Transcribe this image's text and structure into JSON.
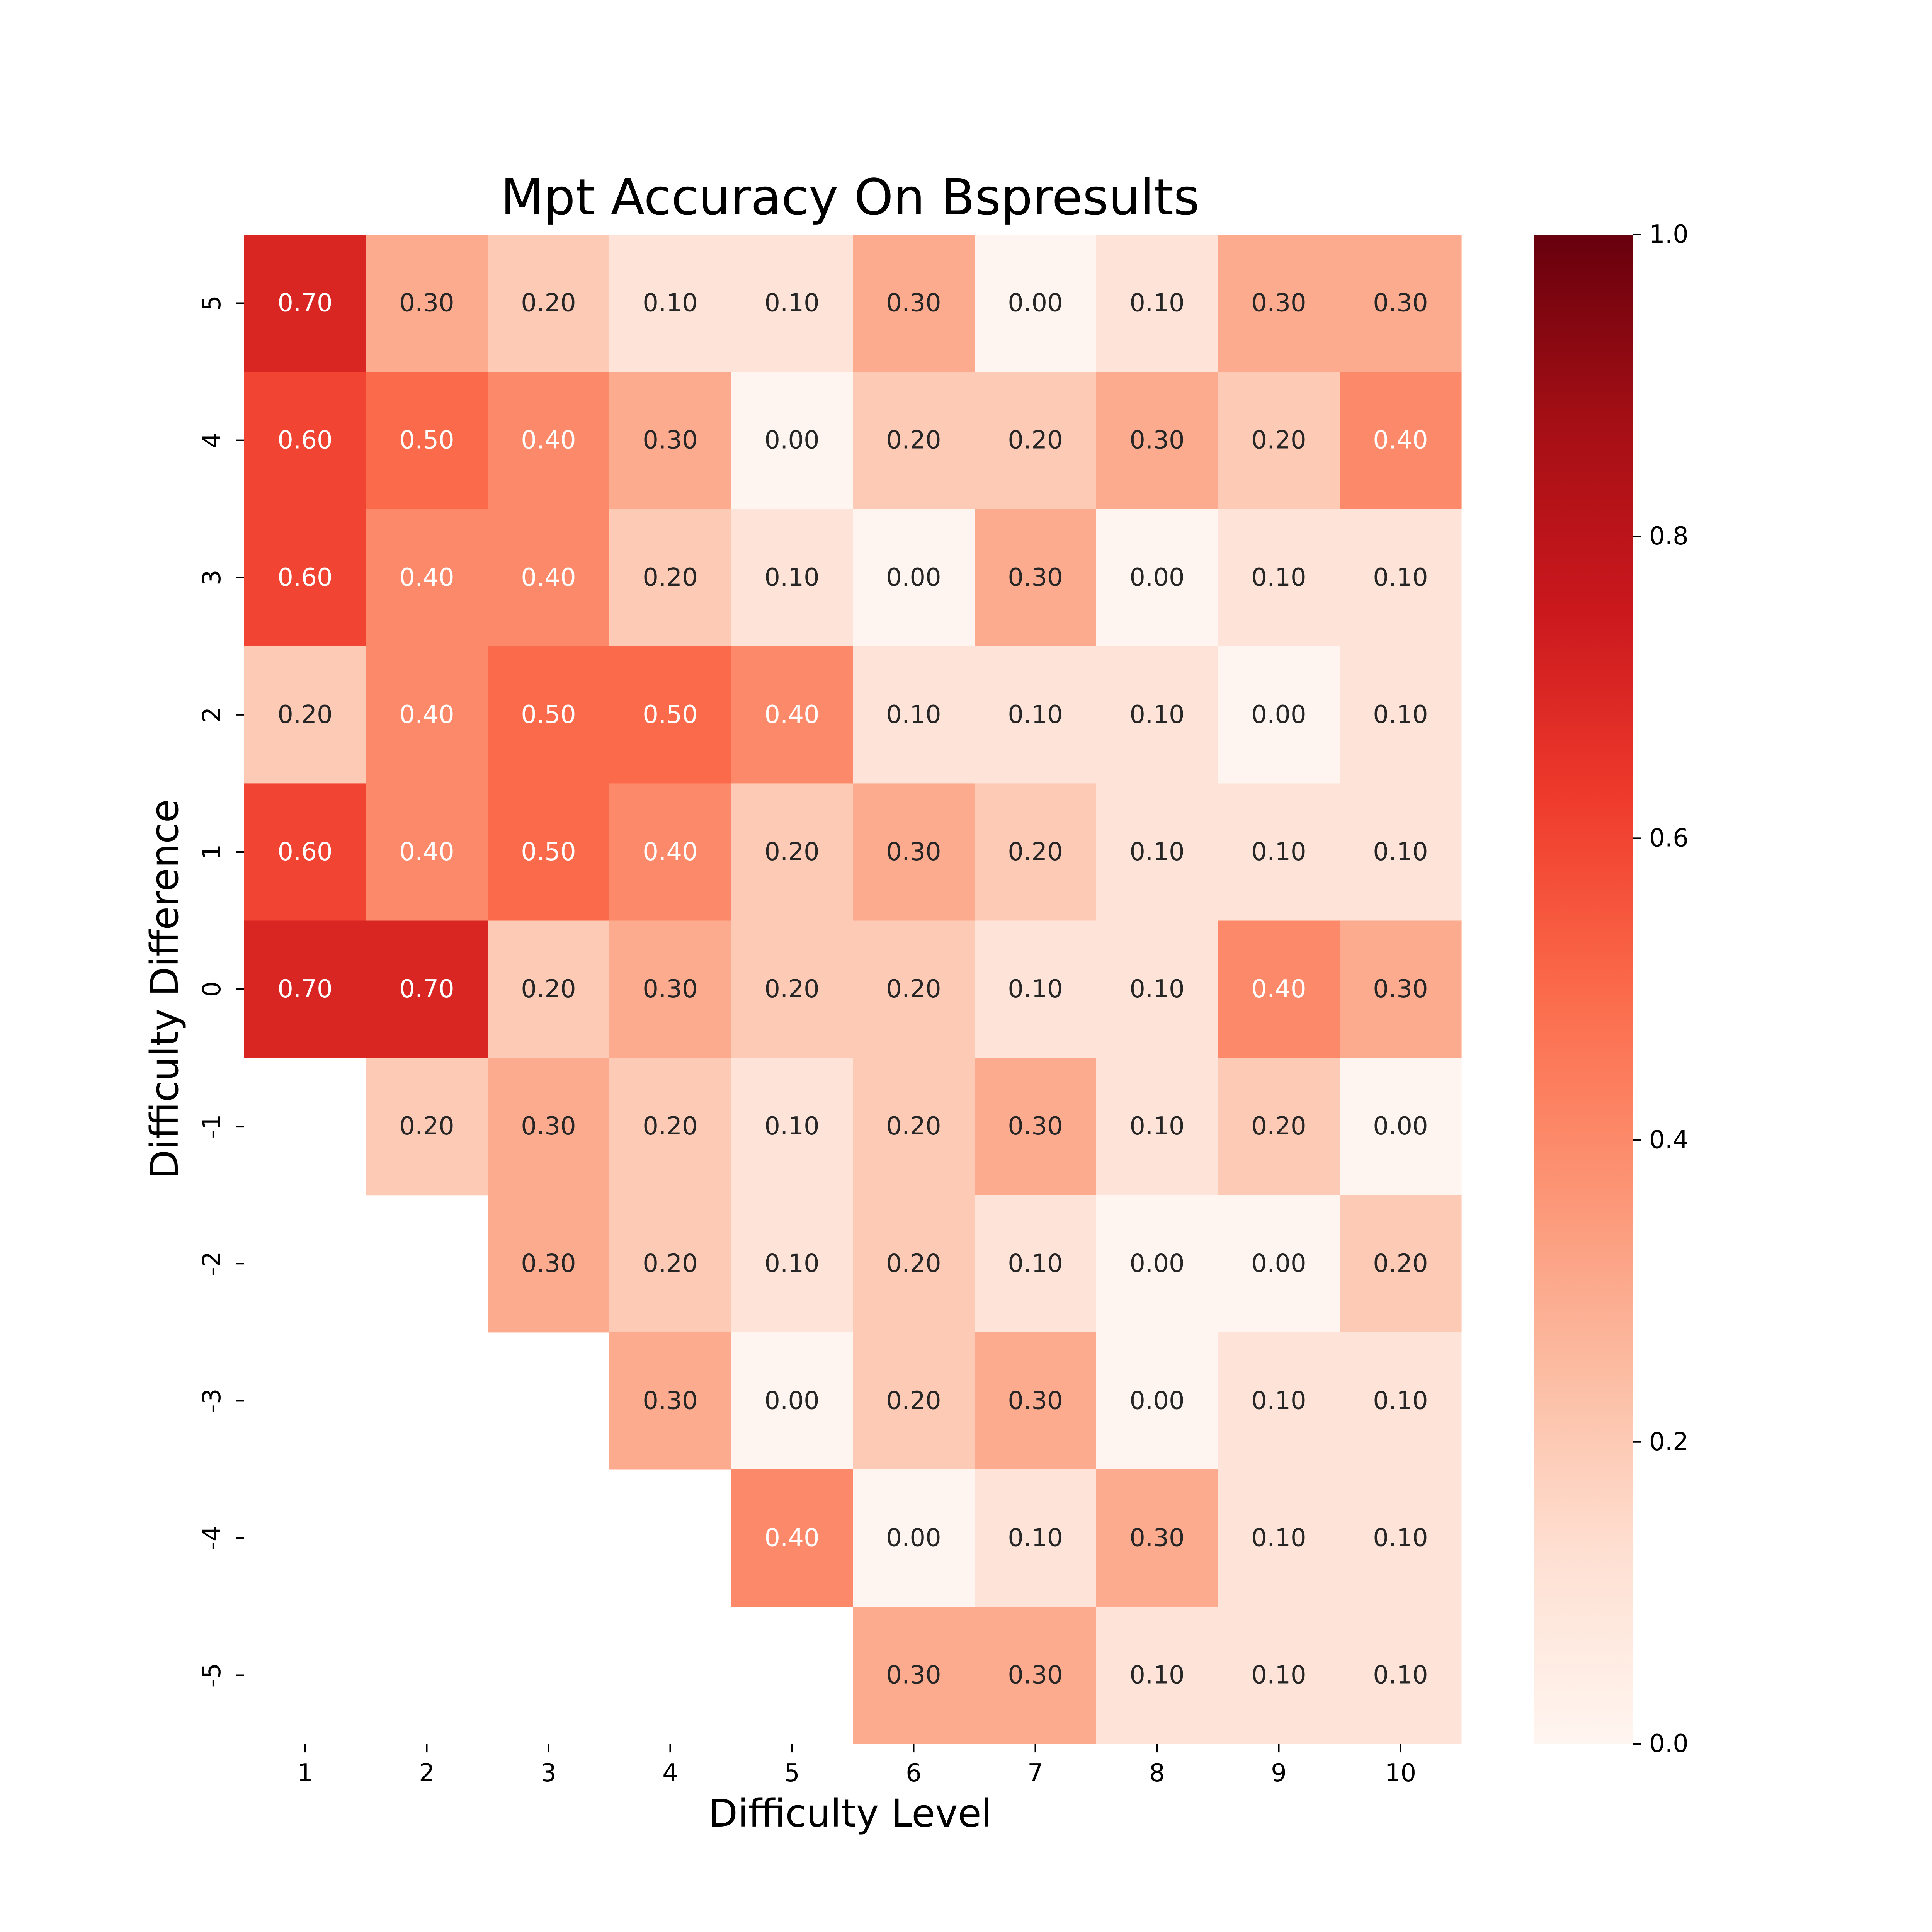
{
  "chart_data": {
    "type": "heatmap",
    "title": "Mpt Accuracy On Bspresults",
    "xlabel": "Difficulty Level",
    "ylabel": "Difficulty Difference",
    "x_categories": [
      "1",
      "2",
      "3",
      "4",
      "5",
      "6",
      "7",
      "8",
      "9",
      "10"
    ],
    "y_categories": [
      "5",
      "4",
      "3",
      "2",
      "1",
      "0",
      "-1",
      "-2",
      "-3",
      "-4",
      "-5"
    ],
    "values": [
      [
        0.7,
        0.3,
        0.2,
        0.1,
        0.1,
        0.3,
        0.0,
        0.1,
        0.3,
        0.3
      ],
      [
        0.6,
        0.5,
        0.4,
        0.3,
        0.0,
        0.2,
        0.2,
        0.3,
        0.2,
        0.4
      ],
      [
        0.6,
        0.4,
        0.4,
        0.2,
        0.1,
        0.0,
        0.3,
        0.0,
        0.1,
        0.1
      ],
      [
        0.2,
        0.4,
        0.5,
        0.5,
        0.4,
        0.1,
        0.1,
        0.1,
        0.0,
        0.1
      ],
      [
        0.6,
        0.4,
        0.5,
        0.4,
        0.2,
        0.3,
        0.2,
        0.1,
        0.1,
        0.1
      ],
      [
        0.7,
        0.7,
        0.2,
        0.3,
        0.2,
        0.2,
        0.1,
        0.1,
        0.4,
        0.3
      ],
      [
        null,
        0.2,
        0.3,
        0.2,
        0.1,
        0.2,
        0.3,
        0.1,
        0.2,
        0.0
      ],
      [
        null,
        null,
        0.3,
        0.2,
        0.1,
        0.2,
        0.1,
        0.0,
        0.0,
        0.2
      ],
      [
        null,
        null,
        null,
        0.3,
        0.0,
        0.2,
        0.3,
        0.0,
        0.1,
        0.1
      ],
      [
        null,
        null,
        null,
        null,
        0.4,
        0.0,
        0.1,
        0.3,
        0.1,
        0.1
      ],
      [
        null,
        null,
        null,
        null,
        null,
        0.3,
        0.3,
        0.1,
        0.1,
        0.1
      ]
    ],
    "value_format": "0.00",
    "colormap": "Reds",
    "colorbar": {
      "range": [
        0.0,
        1.0
      ],
      "ticks": [
        "0.0",
        "0.2",
        "0.4",
        "0.6",
        "0.8",
        "1.0"
      ]
    },
    "grid": false
  }
}
